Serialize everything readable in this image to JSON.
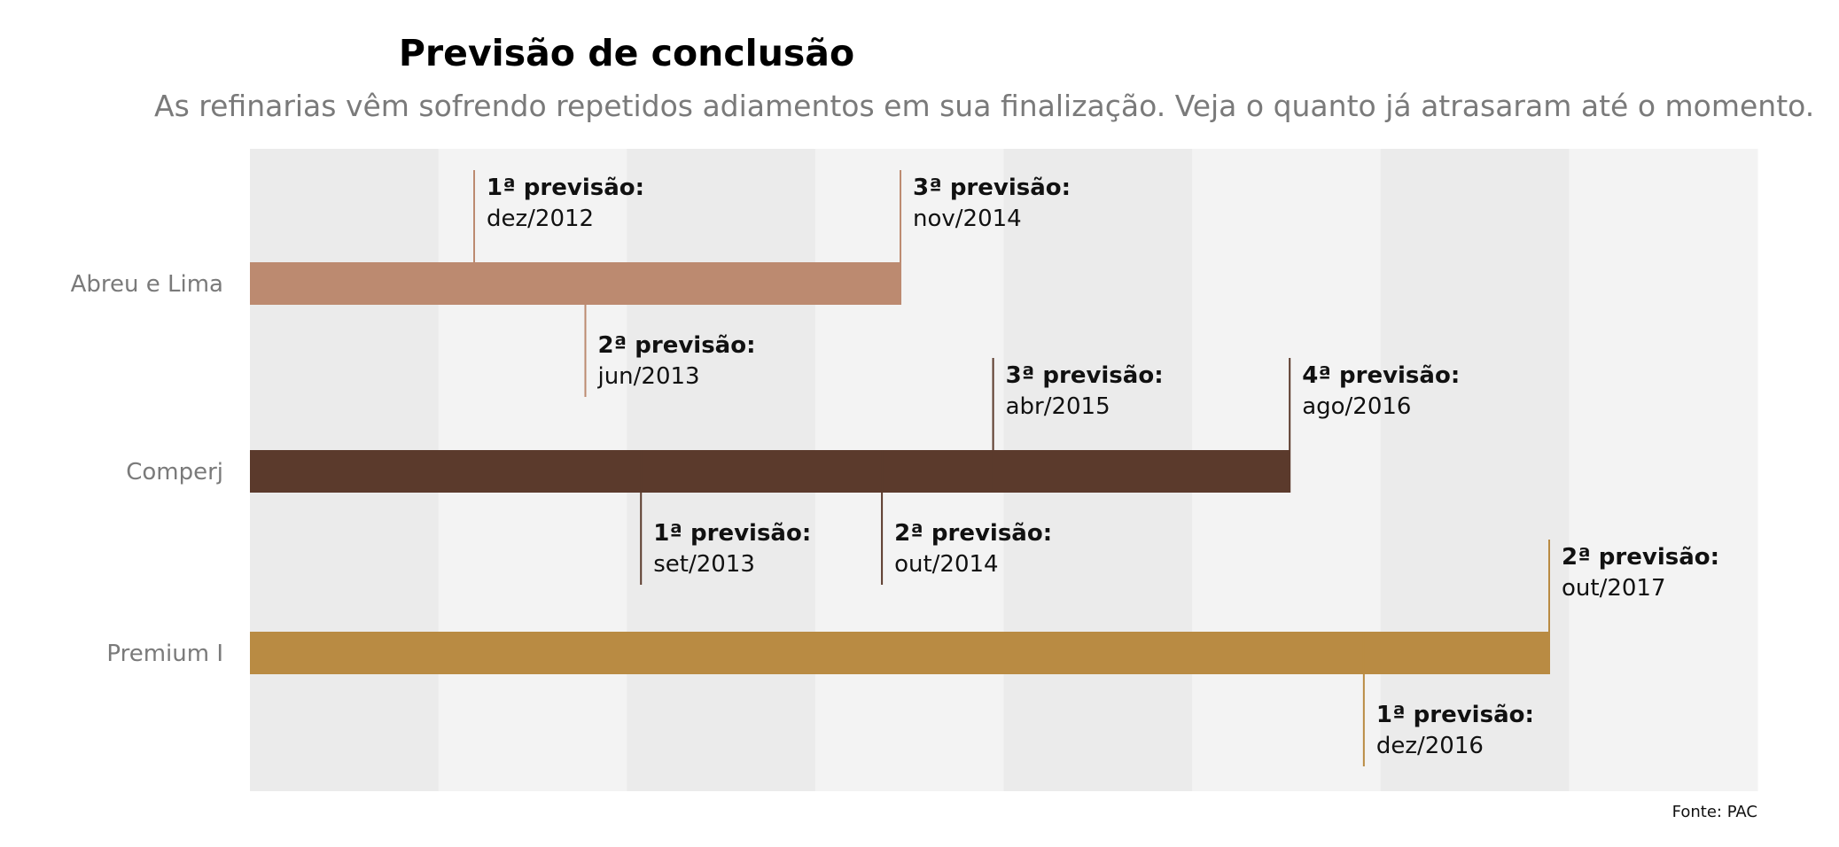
{
  "chart_data": {
    "type": "timeline-bar",
    "title": "Previsão de conclusão",
    "subtitle": "As refinarias vêm sofrendo repetidos adiamentos em sua finalização. Veja o quanto já atrasaram até o momento.",
    "source": "Fonte: PAC",
    "grid": true,
    "background_bands": 8,
    "series": [
      {
        "name": "Abreu e Lima",
        "color": "#bc8a70",
        "end": "nov/2014",
        "forecasts": [
          {
            "label": "1ª previsão:",
            "date": "dez/2012",
            "position": "above"
          },
          {
            "label": "2ª previsão:",
            "date": "jun/2013",
            "position": "below"
          },
          {
            "label": "3ª previsão:",
            "date": "nov/2014",
            "position": "above"
          }
        ]
      },
      {
        "name": "Comperj",
        "color": "#5b3a2c",
        "end": "ago/2016",
        "forecasts": [
          {
            "label": "1ª previsão:",
            "date": "set/2013",
            "position": "below"
          },
          {
            "label": "2ª previsão:",
            "date": "out/2014",
            "position": "below"
          },
          {
            "label": "3ª previsão:",
            "date": "abr/2015",
            "position": "above"
          },
          {
            "label": "4ª previsão:",
            "date": "ago/2016",
            "position": "above"
          }
        ]
      },
      {
        "name": "Premium I",
        "color": "#b98b43",
        "end": "out/2017",
        "forecasts": [
          {
            "label": "1ª previsão:",
            "date": "dez/2016",
            "position": "below"
          },
          {
            "label": "2ª previsão:",
            "date": "out/2017",
            "position": "above"
          }
        ]
      }
    ]
  }
}
